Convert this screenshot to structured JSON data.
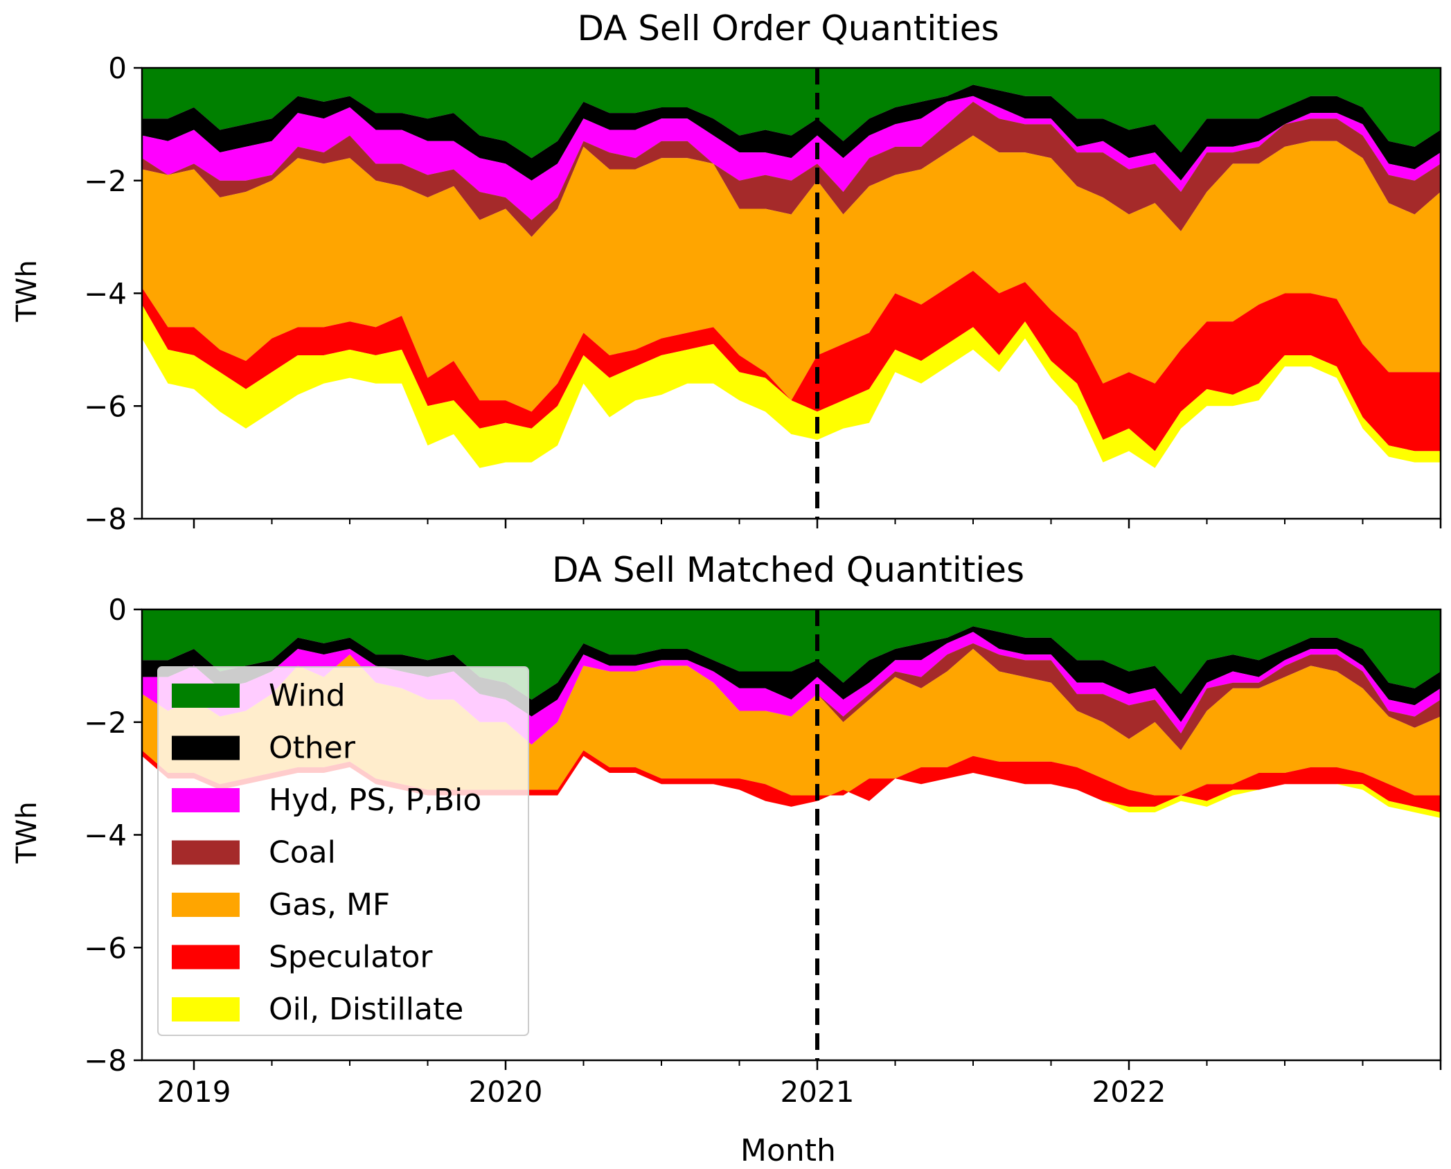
{
  "chart_data": {
    "type": "area",
    "stacked": true,
    "xlabel": "Month",
    "x_tick_labels": [
      "2019",
      "2020",
      "2021",
      "2022"
    ],
    "x_range": [
      "2018-11",
      "2022-12"
    ],
    "marker_line": {
      "x": "2021-01",
      "style": "dashed",
      "color": "#000000"
    },
    "legend_location": "lower-left of bottom panel",
    "categories": [
      "Wind",
      "Other",
      "Hyd, PS, P,Bio",
      "Coal",
      "Gas, MF",
      "Speculator",
      "Oil, Distillate"
    ],
    "colors": {
      "Wind": "#008000",
      "Other": "#000000",
      "Hyd, PS, P,Bio": "#ff00ff",
      "Coal": "#a52a2a",
      "Gas, MF": "#ffa500",
      "Speculator": "#ff0000",
      "Oil, Distillate": "#ffff00"
    },
    "panels": [
      {
        "title": "DA Sell Order Quantities",
        "ylabel": "TWh",
        "ylim": [
          -8,
          0
        ],
        "yticks": [
          0,
          -2,
          -4,
          -6,
          -8
        ],
        "series": [
          {
            "name": "Wind",
            "cumulative_lower_bounds": [
              -0.9,
              -0.9,
              -0.7,
              -1.1,
              -1.0,
              -0.9,
              -0.5,
              -0.6,
              -0.5,
              -0.8,
              -0.8,
              -0.9,
              -0.8,
              -1.2,
              -1.3,
              -1.6,
              -1.3,
              -0.6,
              -0.8,
              -0.8,
              -0.7,
              -0.7,
              -0.9,
              -1.2,
              -1.1,
              -1.2,
              -0.9,
              -1.3,
              -0.9,
              -0.7,
              -0.6,
              -0.5,
              -0.3,
              -0.4,
              -0.5,
              -0.5,
              -0.9,
              -0.9,
              -1.1,
              -1.0,
              -1.5,
              -0.9,
              -0.9,
              -0.9,
              -0.7,
              -0.5,
              -0.5,
              -0.7,
              -1.3,
              -1.4,
              -1.1
            ]
          },
          {
            "name": "Other",
            "cumulative_lower_bounds": [
              -1.2,
              -1.3,
              -1.1,
              -1.5,
              -1.4,
              -1.3,
              -0.8,
              -0.9,
              -0.7,
              -1.1,
              -1.1,
              -1.3,
              -1.3,
              -1.6,
              -1.7,
              -2.0,
              -1.7,
              -0.9,
              -1.1,
              -1.1,
              -0.9,
              -0.9,
              -1.2,
              -1.5,
              -1.5,
              -1.6,
              -1.2,
              -1.6,
              -1.2,
              -1.0,
              -0.9,
              -0.6,
              -0.5,
              -0.7,
              -0.9,
              -0.9,
              -1.4,
              -1.3,
              -1.6,
              -1.5,
              -2.0,
              -1.4,
              -1.4,
              -1.3,
              -1.0,
              -0.8,
              -0.8,
              -1.0,
              -1.7,
              -1.8,
              -1.5
            ]
          },
          {
            "name": "Hyd, PS, P,Bio",
            "cumulative_lower_bounds": [
              -1.6,
              -1.9,
              -1.7,
              -2.0,
              -2.0,
              -1.9,
              -1.4,
              -1.5,
              -1.2,
              -1.7,
              -1.7,
              -1.9,
              -1.8,
              -2.2,
              -2.3,
              -2.7,
              -2.3,
              -1.3,
              -1.5,
              -1.6,
              -1.3,
              -1.3,
              -1.7,
              -2.0,
              -1.9,
              -2.0,
              -1.7,
              -2.2,
              -1.6,
              -1.4,
              -1.4,
              -1.0,
              -0.6,
              -0.9,
              -1.0,
              -1.0,
              -1.5,
              -1.5,
              -1.8,
              -1.7,
              -2.2,
              -1.5,
              -1.5,
              -1.4,
              -1.0,
              -0.9,
              -0.9,
              -1.2,
              -1.9,
              -2.0,
              -1.7
            ]
          },
          {
            "name": "Coal",
            "cumulative_lower_bounds": [
              -1.8,
              -1.9,
              -1.8,
              -2.3,
              -2.2,
              -2.0,
              -1.6,
              -1.7,
              -1.6,
              -2.0,
              -2.1,
              -2.3,
              -2.1,
              -2.7,
              -2.5,
              -3.0,
              -2.5,
              -1.4,
              -1.8,
              -1.8,
              -1.6,
              -1.6,
              -1.7,
              -2.5,
              -2.5,
              -2.6,
              -2.0,
              -2.6,
              -2.1,
              -1.9,
              -1.8,
              -1.5,
              -1.2,
              -1.5,
              -1.5,
              -1.6,
              -2.1,
              -2.3,
              -2.6,
              -2.4,
              -2.9,
              -2.2,
              -1.7,
              -1.7,
              -1.4,
              -1.3,
              -1.3,
              -1.6,
              -2.4,
              -2.6,
              -2.2
            ]
          },
          {
            "name": "Gas, MF",
            "cumulative_lower_bounds": [
              -3.9,
              -4.6,
              -4.6,
              -5.0,
              -5.2,
              -4.8,
              -4.6,
              -4.6,
              -4.5,
              -4.6,
              -4.4,
              -5.5,
              -5.2,
              -5.9,
              -5.9,
              -6.1,
              -5.6,
              -4.7,
              -5.1,
              -5.0,
              -4.8,
              -4.7,
              -4.6,
              -5.1,
              -5.4,
              -5.9,
              -5.1,
              -4.9,
              -4.7,
              -4.0,
              -4.2,
              -3.9,
              -3.6,
              -4.0,
              -3.8,
              -4.3,
              -4.7,
              -5.6,
              -5.4,
              -5.6,
              -5.0,
              -4.5,
              -4.5,
              -4.2,
              -4.0,
              -4.0,
              -4.1,
              -4.9,
              -5.4,
              -5.4,
              -5.4
            ]
          },
          {
            "name": "Speculator",
            "cumulative_lower_bounds": [
              -4.2,
              -5.0,
              -5.1,
              -5.4,
              -5.7,
              -5.4,
              -5.1,
              -5.1,
              -5.0,
              -5.1,
              -5.0,
              -6.0,
              -5.9,
              -6.4,
              -6.3,
              -6.4,
              -6.0,
              -5.1,
              -5.5,
              -5.3,
              -5.1,
              -5.0,
              -4.9,
              -5.4,
              -5.5,
              -5.9,
              -6.1,
              -5.9,
              -5.7,
              -5.0,
              -5.2,
              -4.9,
              -4.6,
              -5.1,
              -4.5,
              -5.2,
              -5.6,
              -6.6,
              -6.4,
              -6.8,
              -6.1,
              -5.7,
              -5.8,
              -5.6,
              -5.1,
              -5.1,
              -5.3,
              -6.2,
              -6.7,
              -6.8,
              -6.8
            ]
          },
          {
            "name": "Oil, Distillate",
            "cumulative_lower_bounds": [
              -4.8,
              -5.6,
              -5.7,
              -6.1,
              -6.4,
              -6.1,
              -5.8,
              -5.6,
              -5.5,
              -5.6,
              -5.6,
              -6.7,
              -6.5,
              -7.1,
              -7.0,
              -7.0,
              -6.7,
              -5.6,
              -6.2,
              -5.9,
              -5.8,
              -5.6,
              -5.6,
              -5.9,
              -6.1,
              -6.5,
              -6.6,
              -6.4,
              -6.3,
              -5.4,
              -5.6,
              -5.3,
              -5.0,
              -5.4,
              -4.8,
              -5.5,
              -6.0,
              -7.0,
              -6.8,
              -7.1,
              -6.4,
              -6.0,
              -6.0,
              -5.9,
              -5.3,
              -5.3,
              -5.5,
              -6.4,
              -6.9,
              -7.0,
              -7.0
            ]
          }
        ]
      },
      {
        "title": "DA Sell Matched Quantities",
        "ylabel": "TWh",
        "ylim": [
          -8,
          0
        ],
        "yticks": [
          0,
          -2,
          -4,
          -6,
          -8
        ],
        "series": [
          {
            "name": "Wind",
            "cumulative_lower_bounds": [
              -0.9,
              -0.9,
              -0.7,
              -1.1,
              -1.0,
              -0.9,
              -0.5,
              -0.6,
              -0.5,
              -0.8,
              -0.8,
              -0.9,
              -0.8,
              -1.2,
              -1.3,
              -1.6,
              -1.3,
              -0.6,
              -0.8,
              -0.8,
              -0.7,
              -0.7,
              -0.9,
              -1.1,
              -1.1,
              -1.1,
              -0.9,
              -1.3,
              -0.9,
              -0.7,
              -0.6,
              -0.5,
              -0.3,
              -0.4,
              -0.5,
              -0.5,
              -0.9,
              -0.9,
              -1.1,
              -1.0,
              -1.5,
              -0.9,
              -0.8,
              -0.9,
              -0.7,
              -0.5,
              -0.5,
              -0.7,
              -1.3,
              -1.4,
              -1.1
            ]
          },
          {
            "name": "Other",
            "cumulative_lower_bounds": [
              -1.2,
              -1.2,
              -1.0,
              -1.4,
              -1.3,
              -1.1,
              -0.7,
              -0.8,
              -0.7,
              -1.0,
              -1.1,
              -1.2,
              -1.1,
              -1.5,
              -1.6,
              -1.9,
              -1.6,
              -0.8,
              -1.0,
              -1.0,
              -0.9,
              -0.9,
              -1.1,
              -1.4,
              -1.4,
              -1.6,
              -1.2,
              -1.6,
              -1.3,
              -0.9,
              -0.9,
              -0.6,
              -0.4,
              -0.7,
              -0.8,
              -0.8,
              -1.3,
              -1.3,
              -1.5,
              -1.4,
              -2.0,
              -1.3,
              -1.1,
              -1.2,
              -0.9,
              -0.7,
              -0.7,
              -1.0,
              -1.6,
              -1.7,
              -1.4
            ]
          },
          {
            "name": "Hyd, PS, P,Bio",
            "cumulative_lower_bounds": [
              -1.5,
              -1.8,
              -1.6,
              -1.9,
              -1.8,
              -1.5,
              -1.0,
              -1.2,
              -0.8,
              -1.3,
              -1.4,
              -1.6,
              -1.6,
              -2.0,
              -2.0,
              -2.4,
              -2.0,
              -1.0,
              -1.1,
              -1.1,
              -1.0,
              -1.0,
              -1.3,
              -1.8,
              -1.8,
              -1.9,
              -1.5,
              -1.9,
              -1.5,
              -1.1,
              -1.2,
              -0.8,
              -0.6,
              -0.8,
              -0.9,
              -0.9,
              -1.5,
              -1.5,
              -1.7,
              -1.6,
              -2.2,
              -1.4,
              -1.3,
              -1.3,
              -1.0,
              -0.8,
              -0.8,
              -1.1,
              -1.8,
              -1.9,
              -1.6
            ]
          },
          {
            "name": "Coal",
            "cumulative_lower_bounds": [
              -1.5,
              -1.8,
              -1.6,
              -1.9,
              -1.8,
              -1.5,
              -1.0,
              -1.2,
              -0.8,
              -1.3,
              -1.4,
              -1.6,
              -1.6,
              -2.0,
              -2.0,
              -2.4,
              -2.0,
              -1.0,
              -1.1,
              -1.1,
              -1.0,
              -1.0,
              -1.3,
              -1.8,
              -1.8,
              -1.9,
              -1.5,
              -2.0,
              -1.6,
              -1.2,
              -1.4,
              -1.1,
              -0.7,
              -1.1,
              -1.2,
              -1.3,
              -1.8,
              -2.0,
              -2.3,
              -2.0,
              -2.5,
              -1.8,
              -1.4,
              -1.4,
              -1.2,
              -1.0,
              -1.1,
              -1.4,
              -1.9,
              -2.1,
              -1.9
            ]
          },
          {
            "name": "Gas, MF",
            "cumulative_lower_bounds": [
              -2.5,
              -2.9,
              -2.9,
              -3.1,
              -3.0,
              -2.9,
              -2.8,
              -2.8,
              -2.7,
              -3.0,
              -3.1,
              -3.2,
              -3.2,
              -3.2,
              -3.2,
              -3.2,
              -3.2,
              -2.5,
              -2.8,
              -2.8,
              -3.0,
              -3.0,
              -3.0,
              -3.0,
              -3.1,
              -3.3,
              -3.3,
              -3.3,
              -3.0,
              -3.0,
              -2.8,
              -2.8,
              -2.6,
              -2.7,
              -2.7,
              -2.7,
              -2.8,
              -3.0,
              -3.2,
              -3.3,
              -3.3,
              -3.1,
              -3.1,
              -2.9,
              -2.9,
              -2.8,
              -2.8,
              -2.9,
              -3.1,
              -3.3,
              -3.3
            ]
          },
          {
            "name": "Speculator",
            "cumulative_lower_bounds": [
              -2.6,
              -3.0,
              -3.0,
              -3.2,
              -3.1,
              -3.0,
              -2.9,
              -2.9,
              -2.8,
              -3.1,
              -3.2,
              -3.3,
              -3.3,
              -3.3,
              -3.3,
              -3.3,
              -3.3,
              -2.6,
              -2.9,
              -2.9,
              -3.1,
              -3.1,
              -3.1,
              -3.2,
              -3.4,
              -3.5,
              -3.4,
              -3.2,
              -3.4,
              -3.0,
              -3.1,
              -3.0,
              -2.9,
              -3.0,
              -3.1,
              -3.1,
              -3.2,
              -3.4,
              -3.5,
              -3.5,
              -3.3,
              -3.4,
              -3.2,
              -3.2,
              -3.1,
              -3.1,
              -3.1,
              -3.1,
              -3.4,
              -3.5,
              -3.6
            ]
          },
          {
            "name": "Oil, Distillate",
            "cumulative_lower_bounds": [
              -2.6,
              -3.0,
              -3.0,
              -3.2,
              -3.1,
              -3.0,
              -2.9,
              -2.9,
              -2.8,
              -3.1,
              -3.2,
              -3.3,
              -3.3,
              -3.3,
              -3.3,
              -3.3,
              -3.3,
              -2.6,
              -2.9,
              -2.9,
              -3.1,
              -3.1,
              -3.1,
              -3.2,
              -3.4,
              -3.5,
              -3.4,
              -3.2,
              -3.4,
              -3.0,
              -3.1,
              -3.0,
              -2.9,
              -3.0,
              -3.1,
              -3.1,
              -3.2,
              -3.4,
              -3.6,
              -3.6,
              -3.4,
              -3.5,
              -3.3,
              -3.2,
              -3.1,
              -3.1,
              -3.1,
              -3.2,
              -3.5,
              -3.6,
              -3.7
            ]
          }
        ]
      }
    ]
  }
}
